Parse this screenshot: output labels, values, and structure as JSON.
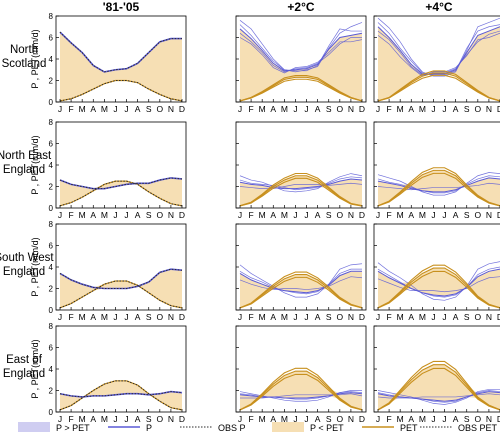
{
  "column_titles": [
    "'81-'05",
    "+2°C",
    "+4°C"
  ],
  "row_titles": [
    [
      "North",
      "Scotland"
    ],
    [
      "North East",
      "England"
    ],
    [
      "South West",
      "England"
    ],
    [
      "East of",
      "England"
    ]
  ],
  "ylabel": "P , PET(mm/d)",
  "month_ticks": [
    "J",
    "F",
    "M",
    "A",
    "M",
    "J",
    "J",
    "A",
    "S",
    "O",
    "N",
    "D"
  ],
  "y_ticks": [
    "0",
    "2",
    "4",
    "6",
    "8"
  ],
  "legend": [
    {
      "key": "p_gt_pet",
      "label": "P > PET"
    },
    {
      "key": "p",
      "label": "P"
    },
    {
      "key": "obs_p",
      "label": "OBS P"
    },
    {
      "key": "p_lt_pet",
      "label": "P < PET"
    },
    {
      "key": "pet",
      "label": "PET"
    },
    {
      "key": "obs_pet",
      "label": "OBS PET"
    }
  ],
  "colors": {
    "p_line": "#5a5ad6",
    "p_fill": "#cfcdf1",
    "pet_line": "#c8901e",
    "pet_fill": "#f6dfb4",
    "obs": "#2b2b2b"
  },
  "chart_data": {
    "type": "line",
    "layout": "3 columns x 4 rows of small multiples",
    "x": [
      "J",
      "F",
      "M",
      "A",
      "M",
      "J",
      "J",
      "A",
      "S",
      "O",
      "N",
      "D"
    ],
    "ylim": [
      0,
      8
    ],
    "panels": [
      {
        "region": "North Scotland",
        "scenario": "'81-'05",
        "P": [
          6.5,
          5.5,
          4.6,
          3.4,
          2.8,
          3.0,
          3.1,
          3.6,
          4.6,
          5.6,
          5.9,
          5.9
        ],
        "PET": [
          0.1,
          0.3,
          0.7,
          1.2,
          1.7,
          2.0,
          2.0,
          1.8,
          1.2,
          0.7,
          0.3,
          0.1
        ],
        "P_ensemble": []
      },
      {
        "region": "North Scotland",
        "scenario": "+2°C",
        "P": [
          6.8,
          5.9,
          4.8,
          3.6,
          2.9,
          3.0,
          3.1,
          3.5,
          4.9,
          6.0,
          6.2,
          6.4
        ],
        "PET": [
          0.1,
          0.4,
          0.9,
          1.5,
          2.1,
          2.3,
          2.3,
          2.1,
          1.5,
          0.9,
          0.4,
          0.1
        ],
        "P_ensemble": [
          [
            7.6,
            6.8,
            5.4,
            4.0,
            3.0,
            2.8,
            3.0,
            3.3,
            5.0,
            6.4,
            7.0,
            7.4
          ],
          [
            6.0,
            5.4,
            4.4,
            3.2,
            2.7,
            3.2,
            3.3,
            3.7,
            4.6,
            5.6,
            5.6,
            5.8
          ],
          [
            7.2,
            6.2,
            5.0,
            3.8,
            3.0,
            2.9,
            2.9,
            3.4,
            5.2,
            6.8,
            6.6,
            6.6
          ],
          [
            6.4,
            5.6,
            4.6,
            3.4,
            2.8,
            3.1,
            3.2,
            3.6,
            4.4,
            5.4,
            6.0,
            6.0
          ]
        ]
      },
      {
        "region": "North Scotland",
        "scenario": "+4°C",
        "P": [
          7.0,
          6.0,
          4.8,
          3.5,
          2.6,
          2.6,
          2.6,
          3.0,
          4.6,
          6.2,
          6.6,
          7.0
        ],
        "PET": [
          0.1,
          0.4,
          1.1,
          1.8,
          2.4,
          2.7,
          2.7,
          2.4,
          1.7,
          1.0,
          0.4,
          0.1
        ],
        "P_ensemble": [
          [
            7.8,
            6.9,
            5.6,
            4.0,
            2.8,
            2.4,
            2.4,
            2.8,
            4.8,
            7.0,
            7.4,
            7.8
          ],
          [
            6.2,
            5.4,
            4.2,
            3.2,
            2.4,
            2.8,
            2.8,
            3.2,
            4.3,
            5.8,
            6.0,
            6.4
          ],
          [
            7.4,
            6.4,
            5.0,
            3.8,
            2.7,
            2.5,
            2.5,
            2.9,
            5.0,
            6.6,
            7.0,
            7.2
          ],
          [
            6.6,
            5.8,
            4.6,
            3.3,
            2.5,
            2.7,
            2.7,
            3.1,
            4.4,
            5.6,
            6.3,
            6.6
          ]
        ]
      },
      {
        "region": "North East England",
        "scenario": "'81-'05",
        "P": [
          2.6,
          2.2,
          2.0,
          1.8,
          1.8,
          2.0,
          2.2,
          2.3,
          2.3,
          2.6,
          2.8,
          2.7
        ],
        "PET": [
          0.2,
          0.5,
          1.0,
          1.6,
          2.2,
          2.5,
          2.5,
          2.2,
          1.5,
          0.9,
          0.4,
          0.2
        ],
        "P_ensemble": []
      },
      {
        "region": "North East England",
        "scenario": "+2°C",
        "P": [
          2.4,
          2.2,
          2.1,
          1.9,
          1.8,
          1.8,
          1.9,
          2.0,
          2.2,
          2.5,
          2.7,
          2.6
        ],
        "PET": [
          0.2,
          0.5,
          1.2,
          2.0,
          2.6,
          3.0,
          3.0,
          2.6,
          1.8,
          1.0,
          0.4,
          0.2
        ],
        "P_ensemble": [
          [
            3.0,
            2.6,
            2.4,
            2.0,
            1.6,
            1.5,
            1.6,
            1.8,
            2.4,
            2.9,
            3.2,
            3.0
          ],
          [
            2.0,
            1.9,
            1.8,
            1.8,
            2.0,
            2.2,
            2.2,
            2.2,
            2.1,
            2.2,
            2.3,
            2.2
          ],
          [
            2.6,
            2.3,
            2.2,
            2.1,
            1.9,
            1.7,
            1.8,
            1.9,
            2.3,
            2.7,
            2.9,
            2.8
          ]
        ]
      },
      {
        "region": "North East England",
        "scenario": "+4°C",
        "P": [
          2.5,
          2.3,
          2.1,
          1.8,
          1.6,
          1.5,
          1.5,
          1.7,
          2.1,
          2.5,
          2.8,
          2.7
        ],
        "PET": [
          0.2,
          0.6,
          1.4,
          2.3,
          3.1,
          3.5,
          3.5,
          3.0,
          2.0,
          1.1,
          0.5,
          0.2
        ],
        "P_ensemble": [
          [
            3.1,
            2.8,
            2.5,
            2.0,
            1.5,
            1.2,
            1.2,
            1.5,
            2.3,
            3.0,
            3.3,
            3.2
          ],
          [
            2.0,
            1.9,
            1.8,
            1.7,
            1.8,
            1.9,
            1.9,
            1.9,
            2.0,
            2.1,
            2.3,
            2.2
          ],
          [
            2.7,
            2.4,
            2.2,
            1.9,
            1.6,
            1.4,
            1.4,
            1.6,
            2.2,
            2.7,
            3.0,
            2.9
          ]
        ]
      },
      {
        "region": "South West England",
        "scenario": "'81-'05",
        "P": [
          3.4,
          2.8,
          2.4,
          2.1,
          2.0,
          2.0,
          2.0,
          2.2,
          2.6,
          3.5,
          3.8,
          3.7
        ],
        "PET": [
          0.2,
          0.6,
          1.2,
          1.8,
          2.4,
          2.7,
          2.7,
          2.3,
          1.6,
          0.9,
          0.4,
          0.2
        ],
        "P_ensemble": []
      },
      {
        "region": "South West England",
        "scenario": "+2°C",
        "P": [
          3.4,
          2.8,
          2.4,
          2.0,
          1.8,
          1.7,
          1.6,
          1.8,
          2.3,
          3.2,
          3.6,
          3.6
        ],
        "PET": [
          0.2,
          0.6,
          1.4,
          2.2,
          2.9,
          3.3,
          3.3,
          2.8,
          2.0,
          1.1,
          0.5,
          0.2
        ],
        "P_ensemble": [
          [
            4.2,
            3.4,
            2.8,
            2.2,
            1.6,
            1.2,
            1.2,
            1.5,
            2.4,
            3.8,
            4.2,
            4.3
          ],
          [
            2.8,
            2.4,
            2.1,
            1.9,
            2.0,
            2.0,
            1.9,
            2.0,
            2.2,
            2.7,
            3.1,
            3.0
          ],
          [
            3.6,
            3.0,
            2.6,
            2.1,
            1.8,
            1.6,
            1.5,
            1.7,
            2.4,
            3.4,
            3.8,
            3.8
          ]
        ]
      },
      {
        "region": "South West England",
        "scenario": "+4°C",
        "P": [
          3.6,
          3.0,
          2.5,
          2.0,
          1.6,
          1.4,
          1.3,
          1.5,
          2.1,
          3.1,
          3.6,
          3.8
        ],
        "PET": [
          0.2,
          0.7,
          1.6,
          2.6,
          3.4,
          3.9,
          3.9,
          3.3,
          2.3,
          1.2,
          0.5,
          0.2
        ],
        "P_ensemble": [
          [
            4.4,
            3.6,
            3.0,
            2.3,
            1.5,
            1.0,
            0.9,
            1.2,
            2.2,
            3.8,
            4.3,
            4.5
          ],
          [
            2.9,
            2.5,
            2.1,
            1.8,
            1.8,
            1.8,
            1.7,
            1.8,
            2.0,
            2.6,
            3.0,
            3.1
          ],
          [
            3.8,
            3.2,
            2.6,
            2.0,
            1.6,
            1.3,
            1.2,
            1.4,
            2.1,
            3.3,
            3.8,
            4.0
          ]
        ]
      },
      {
        "region": "East of England",
        "scenario": "'81-'05",
        "P": [
          1.7,
          1.5,
          1.4,
          1.5,
          1.5,
          1.6,
          1.7,
          1.7,
          1.6,
          1.7,
          1.9,
          1.8
        ],
        "PET": [
          0.2,
          0.6,
          1.3,
          2.0,
          2.6,
          2.9,
          2.9,
          2.5,
          1.7,
          1.0,
          0.4,
          0.2
        ],
        "P_ensemble": []
      },
      {
        "region": "East of England",
        "scenario": "+2°C",
        "P": [
          1.6,
          1.5,
          1.4,
          1.4,
          1.3,
          1.3,
          1.3,
          1.4,
          1.5,
          1.7,
          1.8,
          1.7
        ],
        "PET": [
          0.2,
          0.7,
          1.6,
          2.6,
          3.4,
          3.8,
          3.8,
          3.2,
          2.2,
          1.2,
          0.5,
          0.2
        ],
        "P_ensemble": [
          [
            1.9,
            1.7,
            1.5,
            1.3,
            1.1,
            1.0,
            1.0,
            1.1,
            1.4,
            1.8,
            2.0,
            2.0
          ],
          [
            1.3,
            1.3,
            1.3,
            1.4,
            1.5,
            1.6,
            1.6,
            1.6,
            1.6,
            1.6,
            1.7,
            1.5
          ],
          [
            1.7,
            1.6,
            1.4,
            1.4,
            1.3,
            1.2,
            1.2,
            1.3,
            1.5,
            1.8,
            1.9,
            1.8
          ]
        ]
      },
      {
        "region": "East of England",
        "scenario": "+4°C",
        "P": [
          1.7,
          1.5,
          1.4,
          1.3,
          1.2,
          1.1,
          1.0,
          1.1,
          1.4,
          1.7,
          1.9,
          1.8
        ],
        "PET": [
          0.2,
          0.8,
          1.9,
          3.0,
          3.9,
          4.4,
          4.4,
          3.7,
          2.5,
          1.3,
          0.6,
          0.2
        ],
        "P_ensemble": [
          [
            2.0,
            1.8,
            1.6,
            1.4,
            1.1,
            0.8,
            0.7,
            0.9,
            1.3,
            1.9,
            2.1,
            2.1
          ],
          [
            1.4,
            1.3,
            1.3,
            1.3,
            1.4,
            1.4,
            1.4,
            1.4,
            1.5,
            1.6,
            1.7,
            1.6
          ],
          [
            1.8,
            1.6,
            1.4,
            1.3,
            1.2,
            1.0,
            0.9,
            1.0,
            1.4,
            1.8,
            2.0,
            1.9
          ]
        ]
      }
    ]
  }
}
